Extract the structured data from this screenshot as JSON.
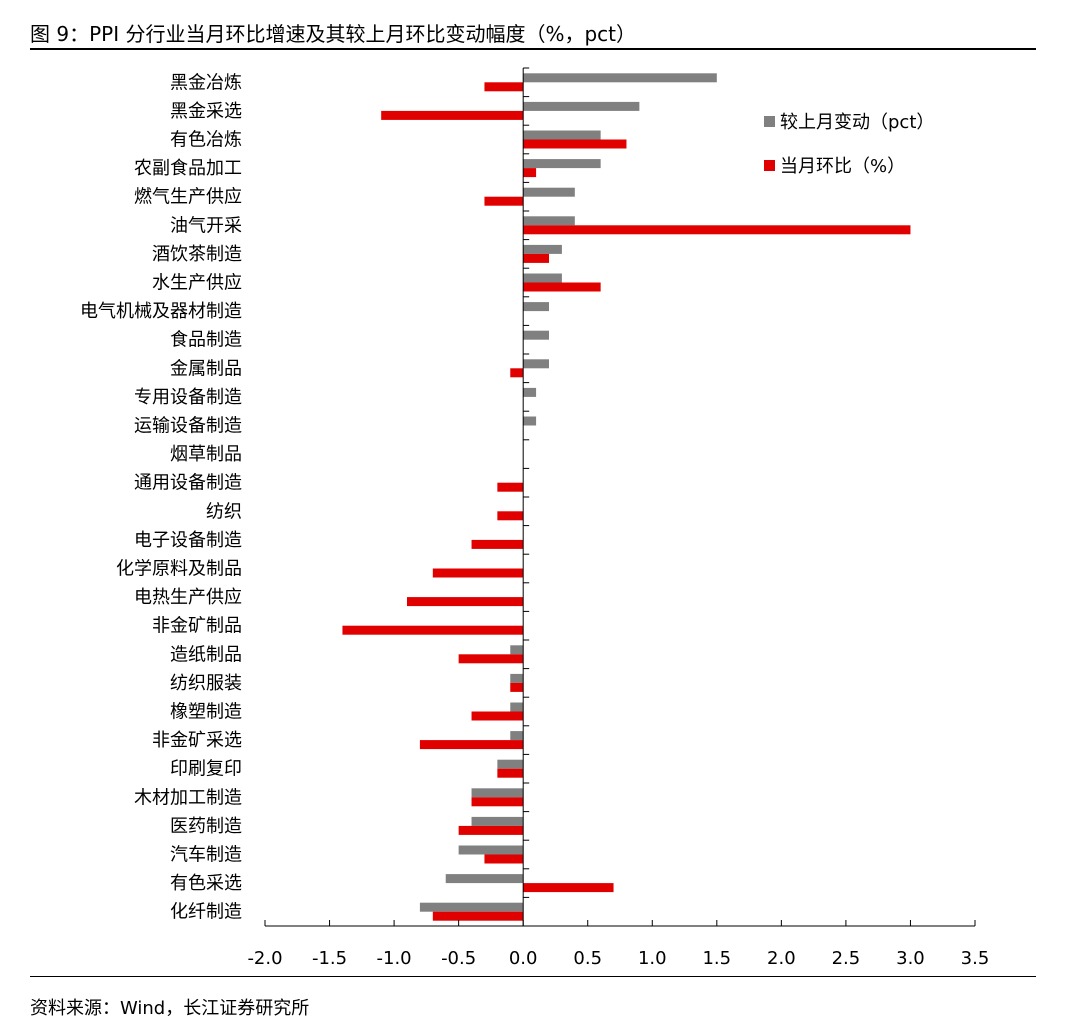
{
  "title": "图 9：PPI 分行业当月环比增速及其较上月环比变动幅度（%，pct）",
  "source": "资料来源：Wind，长江证券研究所",
  "colors": {
    "change": "#808080",
    "mom": "#e00000",
    "axis": "#000000"
  },
  "chart_data": {
    "type": "bar",
    "orientation": "horizontal",
    "categories": [
      "黑金冶炼",
      "黑金采选",
      "有色冶炼",
      "农副食品加工",
      "燃气生产供应",
      "油气开采",
      "酒饮茶制造",
      "水生产供应",
      "电气机械及器材制造",
      "食品制造",
      "金属制品",
      "专用设备制造",
      "运输设备制造",
      "烟草制品",
      "通用设备制造",
      "纺织",
      "电子设备制造",
      "化学原料及制品",
      "电热生产供应",
      "非金矿制品",
      "造纸制品",
      "纺织服装",
      "橡塑制造",
      "非金矿采选",
      "印刷复印",
      "木材加工制造",
      "医药制造",
      "汽车制造",
      "有色采选",
      "化纤制造"
    ],
    "series": [
      {
        "name": "较上月变动（pct）",
        "values": [
          1.5,
          0.9,
          0.6,
          0.6,
          0.4,
          0.4,
          0.3,
          0.3,
          0.2,
          0.2,
          0.2,
          0.1,
          0.1,
          0.0,
          0.0,
          0.0,
          0.0,
          0.0,
          0.0,
          0.0,
          -0.1,
          -0.1,
          -0.1,
          -0.1,
          -0.2,
          -0.4,
          -0.4,
          -0.5,
          -0.6,
          -0.8
        ]
      },
      {
        "name": "当月环比（%）",
        "values": [
          -0.3,
          -1.1,
          0.8,
          0.1,
          -0.3,
          3.0,
          0.2,
          0.6,
          0.0,
          0.0,
          -0.1,
          0.0,
          0.0,
          0.0,
          -0.2,
          -0.2,
          -0.4,
          -0.7,
          -0.9,
          -1.4,
          -0.5,
          -0.1,
          -0.4,
          -0.8,
          -0.2,
          -0.4,
          -0.5,
          -0.3,
          0.7,
          -0.7
        ]
      }
    ],
    "xlim": [
      -2.0,
      3.5
    ],
    "xticks": [
      "-2.0",
      "-1.5",
      "-1.0",
      "-0.5",
      "0.0",
      "0.5",
      "1.0",
      "1.5",
      "2.0",
      "2.5",
      "3.0",
      "3.5"
    ],
    "legend_position": "top-right",
    "grid": false
  }
}
